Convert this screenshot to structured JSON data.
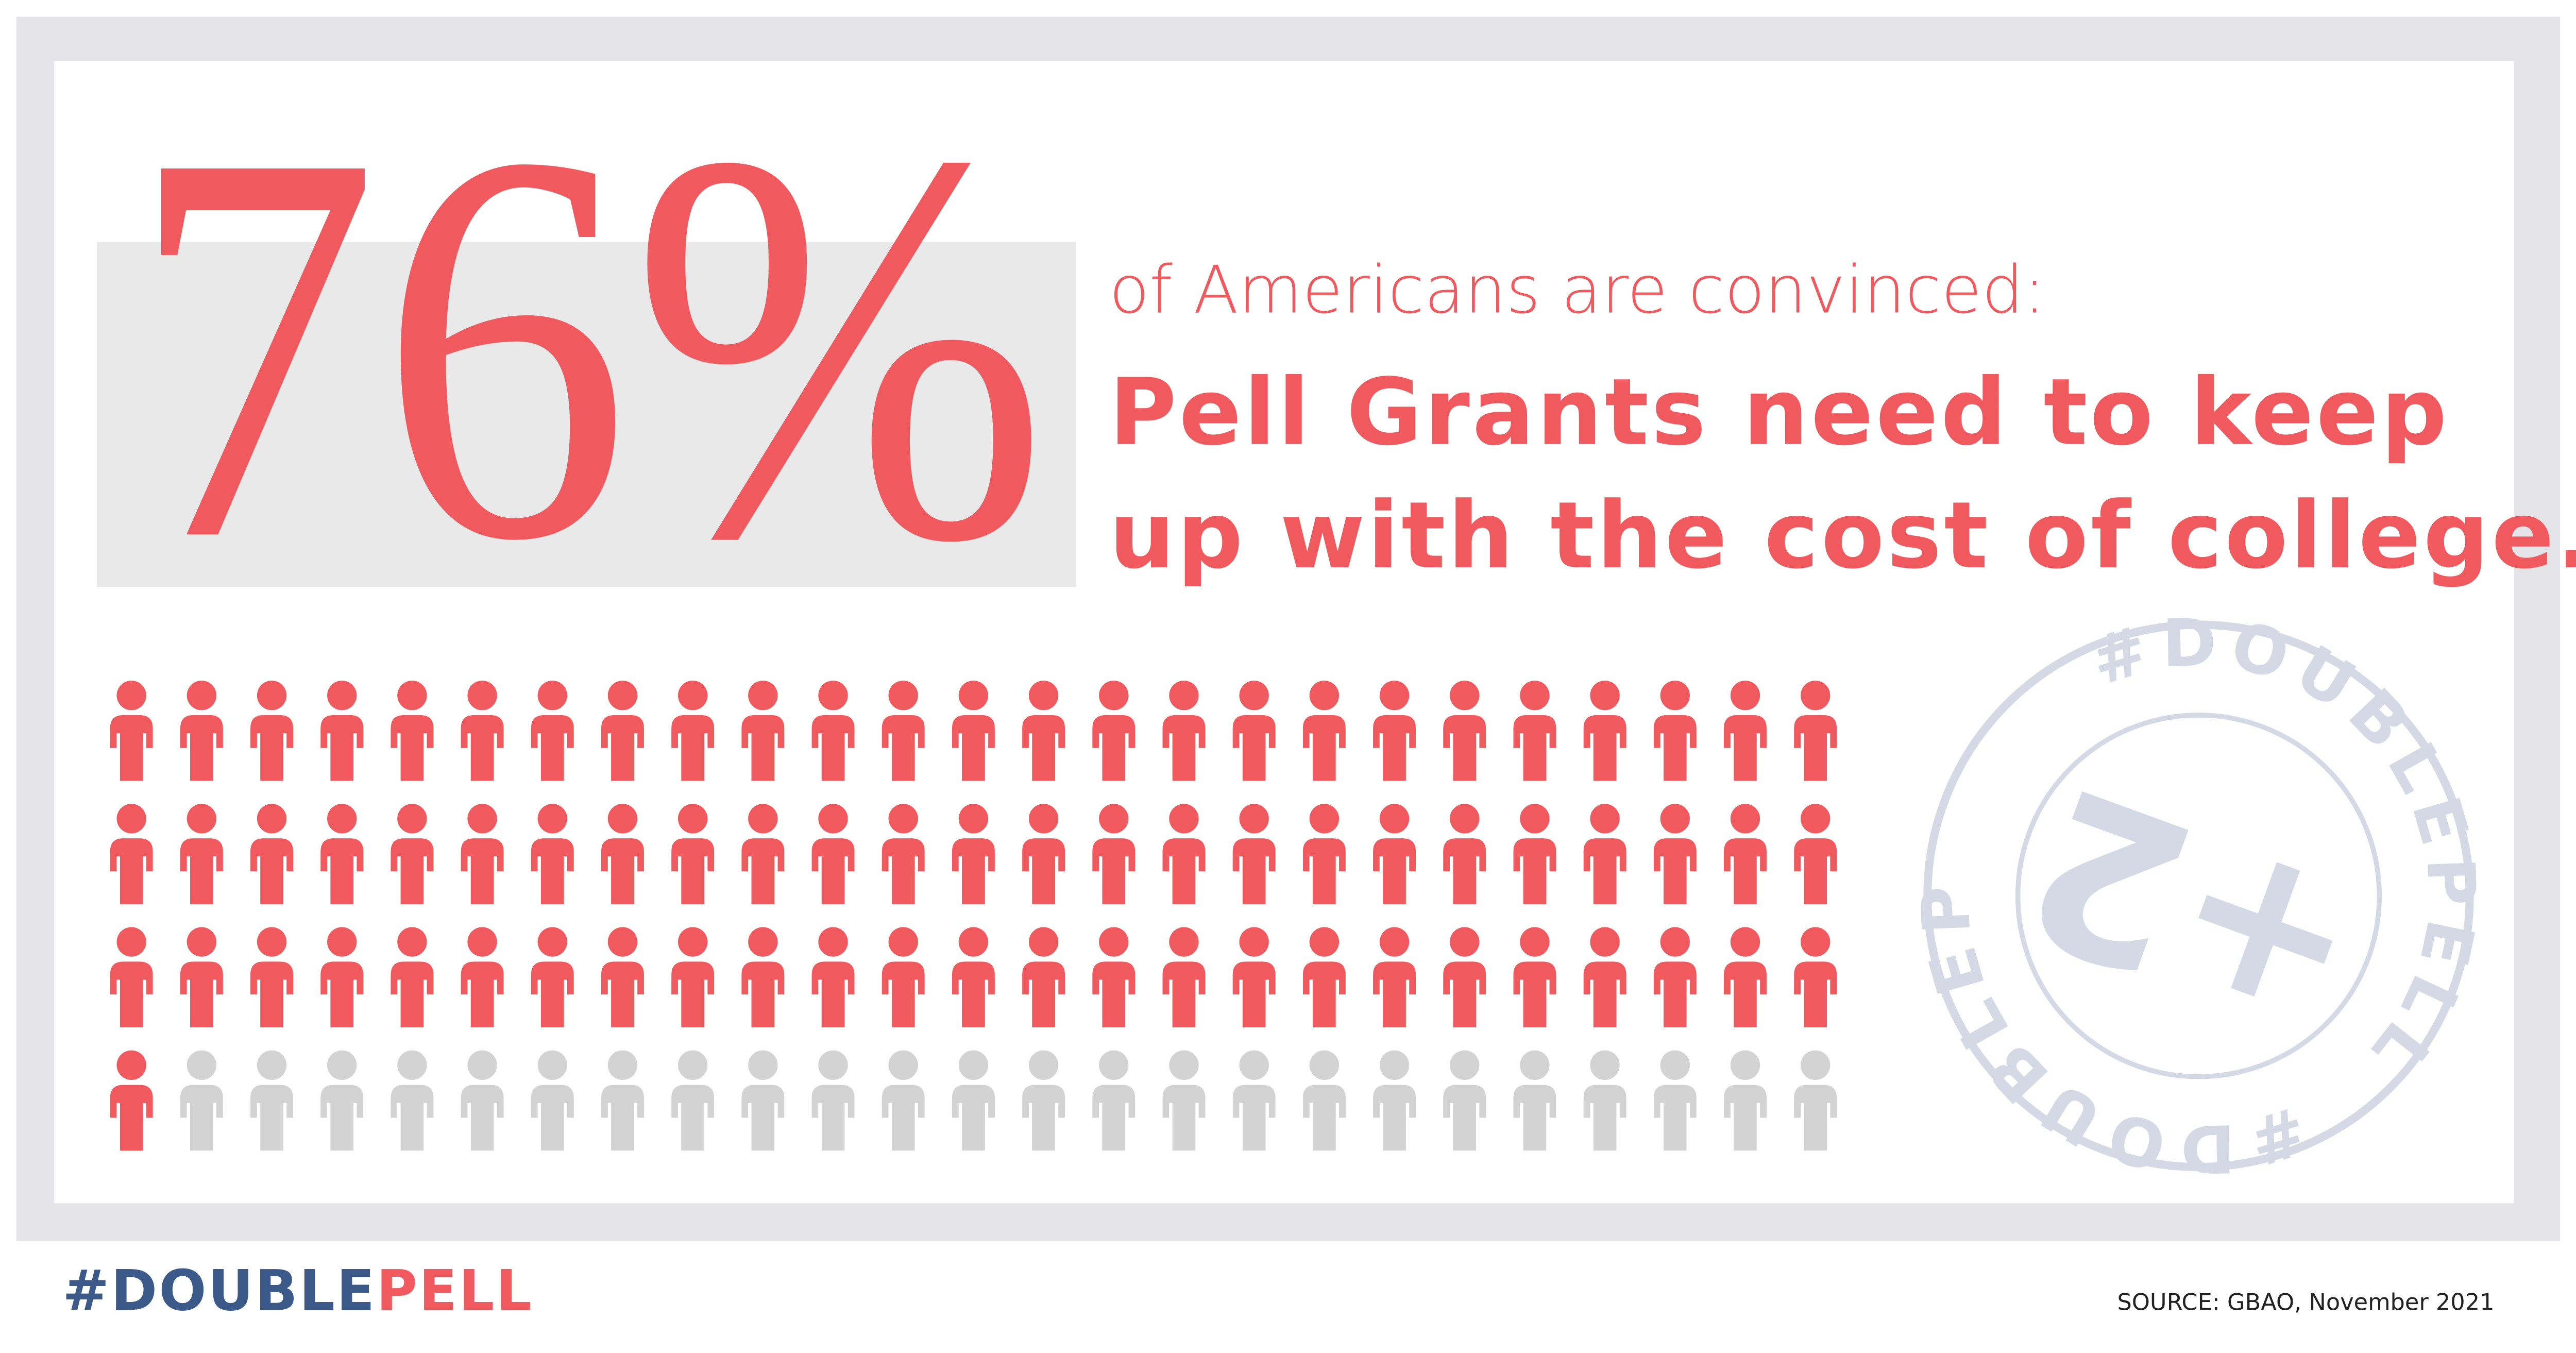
{
  "stat": {
    "value": 76,
    "label": "76%",
    "icon_total": 100,
    "color": "#f0595e",
    "rest_color": "#d3d3d3"
  },
  "headline": {
    "intro": "of Americans are convinced:",
    "line1": "Pell Grants need to keep",
    "line2": "up with the cost of college."
  },
  "stamp": {
    "ring_text": "#DOUBLEPELL",
    "center": "+2"
  },
  "footer": {
    "hashtag_part1": "#DOUBLE",
    "hashtag_part2": "PELL",
    "source": "SOURCE: GBAO, November 2021"
  }
}
